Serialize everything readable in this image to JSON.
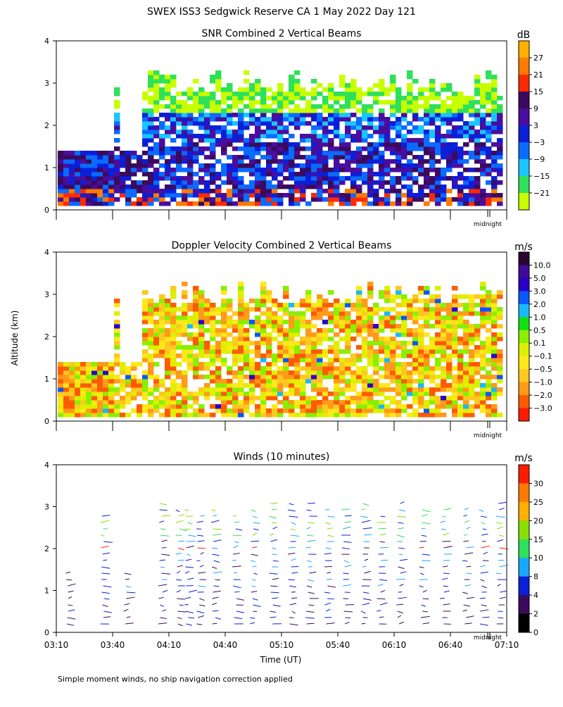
{
  "title": "SWEX ISS3 Sedgwick Reserve CA   1 May 2022 Day 121",
  "footnote": "Simple moment winds, no ship navigation correction applied",
  "shared_ylabel": "Altitude (km)",
  "xlabel": "Time (UT)",
  "midnight_label": "midnight",
  "colors": {
    "snr": [
      "#c8ff00",
      "#2ee05a",
      "#19c6ff",
      "#0a6bff",
      "#0b1fd8",
      "#4a0d9e",
      "#3b0a5c",
      "#ff2a00",
      "#ff7a00",
      "#ffb000"
    ],
    "doppler": [
      "#ff1a00",
      "#ff5a00",
      "#ff9a1a",
      "#ffc820",
      "#ffe81a",
      "#ddf000",
      "#88f000",
      "#10e010",
      "#19b8ff",
      "#0a57ff",
      "#2a00c8",
      "#400a98",
      "#2b0530"
    ],
    "winds": [
      "#000000",
      "#3b0a5c",
      "#0b1fd8",
      "#19a8ff",
      "#2ee05a",
      "#88e000",
      "#ffb000",
      "#ff7a00",
      "#ff1a00"
    ]
  },
  "chart_data": [
    {
      "type": "heatmap",
      "title": "SNR Combined 2 Vertical Beams",
      "unit": "dB",
      "ylim": [
        0,
        4
      ],
      "yticks": [
        "0",
        "1",
        "2",
        "3",
        "4"
      ],
      "colorbar_labels": [
        "27",
        "21",
        "15",
        "9",
        "3",
        "−3",
        "−9",
        "−15",
        "−21"
      ],
      "show_midnight": true
    },
    {
      "type": "heatmap",
      "title": "Doppler Velocity Combined 2 Vertical Beams",
      "unit": "m/s",
      "ylim": [
        0,
        4
      ],
      "yticks": [
        "0",
        "1",
        "2",
        "3",
        "4"
      ],
      "colorbar_labels": [
        "10.0",
        "5.0",
        "3.0",
        "2.0",
        "1.0",
        "0.5",
        "0.1",
        "−0.1",
        "−0.5",
        "−1.0",
        "−2.0",
        "−3.0"
      ],
      "show_midnight": true
    },
    {
      "type": "scatter",
      "title": "Winds (10 minutes)",
      "unit": "m/s",
      "ylim": [
        0,
        4
      ],
      "yticks": [
        "0",
        "1",
        "2",
        "3",
        "4"
      ],
      "xticks": [
        "03:10",
        "03:40",
        "04:10",
        "04:40",
        "05:10",
        "05:40",
        "06:10",
        "06:40",
        "07:10"
      ],
      "colorbar_labels": [
        "30",
        "25",
        "20",
        "15",
        "10",
        "8",
        "4",
        "2",
        "0"
      ],
      "show_midnight": true
    }
  ]
}
